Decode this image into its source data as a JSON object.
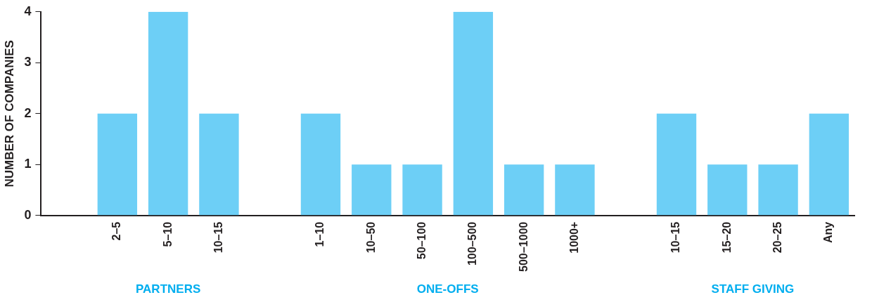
{
  "chart_data": {
    "type": "bar",
    "ylabel": "NUMBER OF COMPANIES",
    "categories": [
      null,
      "2–5",
      "5–10",
      "10–15",
      null,
      "1–10",
      "10–50",
      "50–100",
      "100–500",
      "500–1000",
      "1000+",
      null,
      "10–15",
      "15–20",
      "20–25",
      "Any"
    ],
    "values": [
      null,
      2,
      4,
      2,
      null,
      2,
      1,
      1,
      4,
      1,
      1,
      null,
      2,
      1,
      1,
      2
    ],
    "color": "#6dcff6",
    "ylim": [
      0,
      4
    ],
    "yticks": [
      0,
      1,
      2,
      3,
      4
    ],
    "grid": false,
    "legend": false,
    "annotations": [
      "PARTNERS",
      "ONE-OFFS",
      "STAFF GIVING"
    ]
  }
}
